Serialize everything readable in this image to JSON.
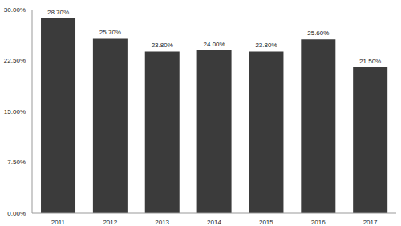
{
  "chart_data": {
    "type": "bar",
    "categories": [
      "2011",
      "2012",
      "2013",
      "2014",
      "2015",
      "2016",
      "2017"
    ],
    "values": [
      28.7,
      25.7,
      23.8,
      24.0,
      23.8,
      25.6,
      21.5
    ],
    "value_labels": [
      "28.70%",
      "25.70%",
      "23.80%",
      "24.00%",
      "23.80%",
      "25.60%",
      "21.50%"
    ],
    "color": "#3b3b3b",
    "ylim": [
      0,
      30
    ],
    "yticks": [
      {
        "value": 0,
        "label": "0.00%"
      },
      {
        "value": 7.5,
        "label": "7.50%"
      },
      {
        "value": 15,
        "label": "15.00%"
      },
      {
        "value": 22.5,
        "label": "22.50%"
      },
      {
        "value": 30,
        "label": "30.00%"
      }
    ],
    "grid": false,
    "data_labels": true
  }
}
